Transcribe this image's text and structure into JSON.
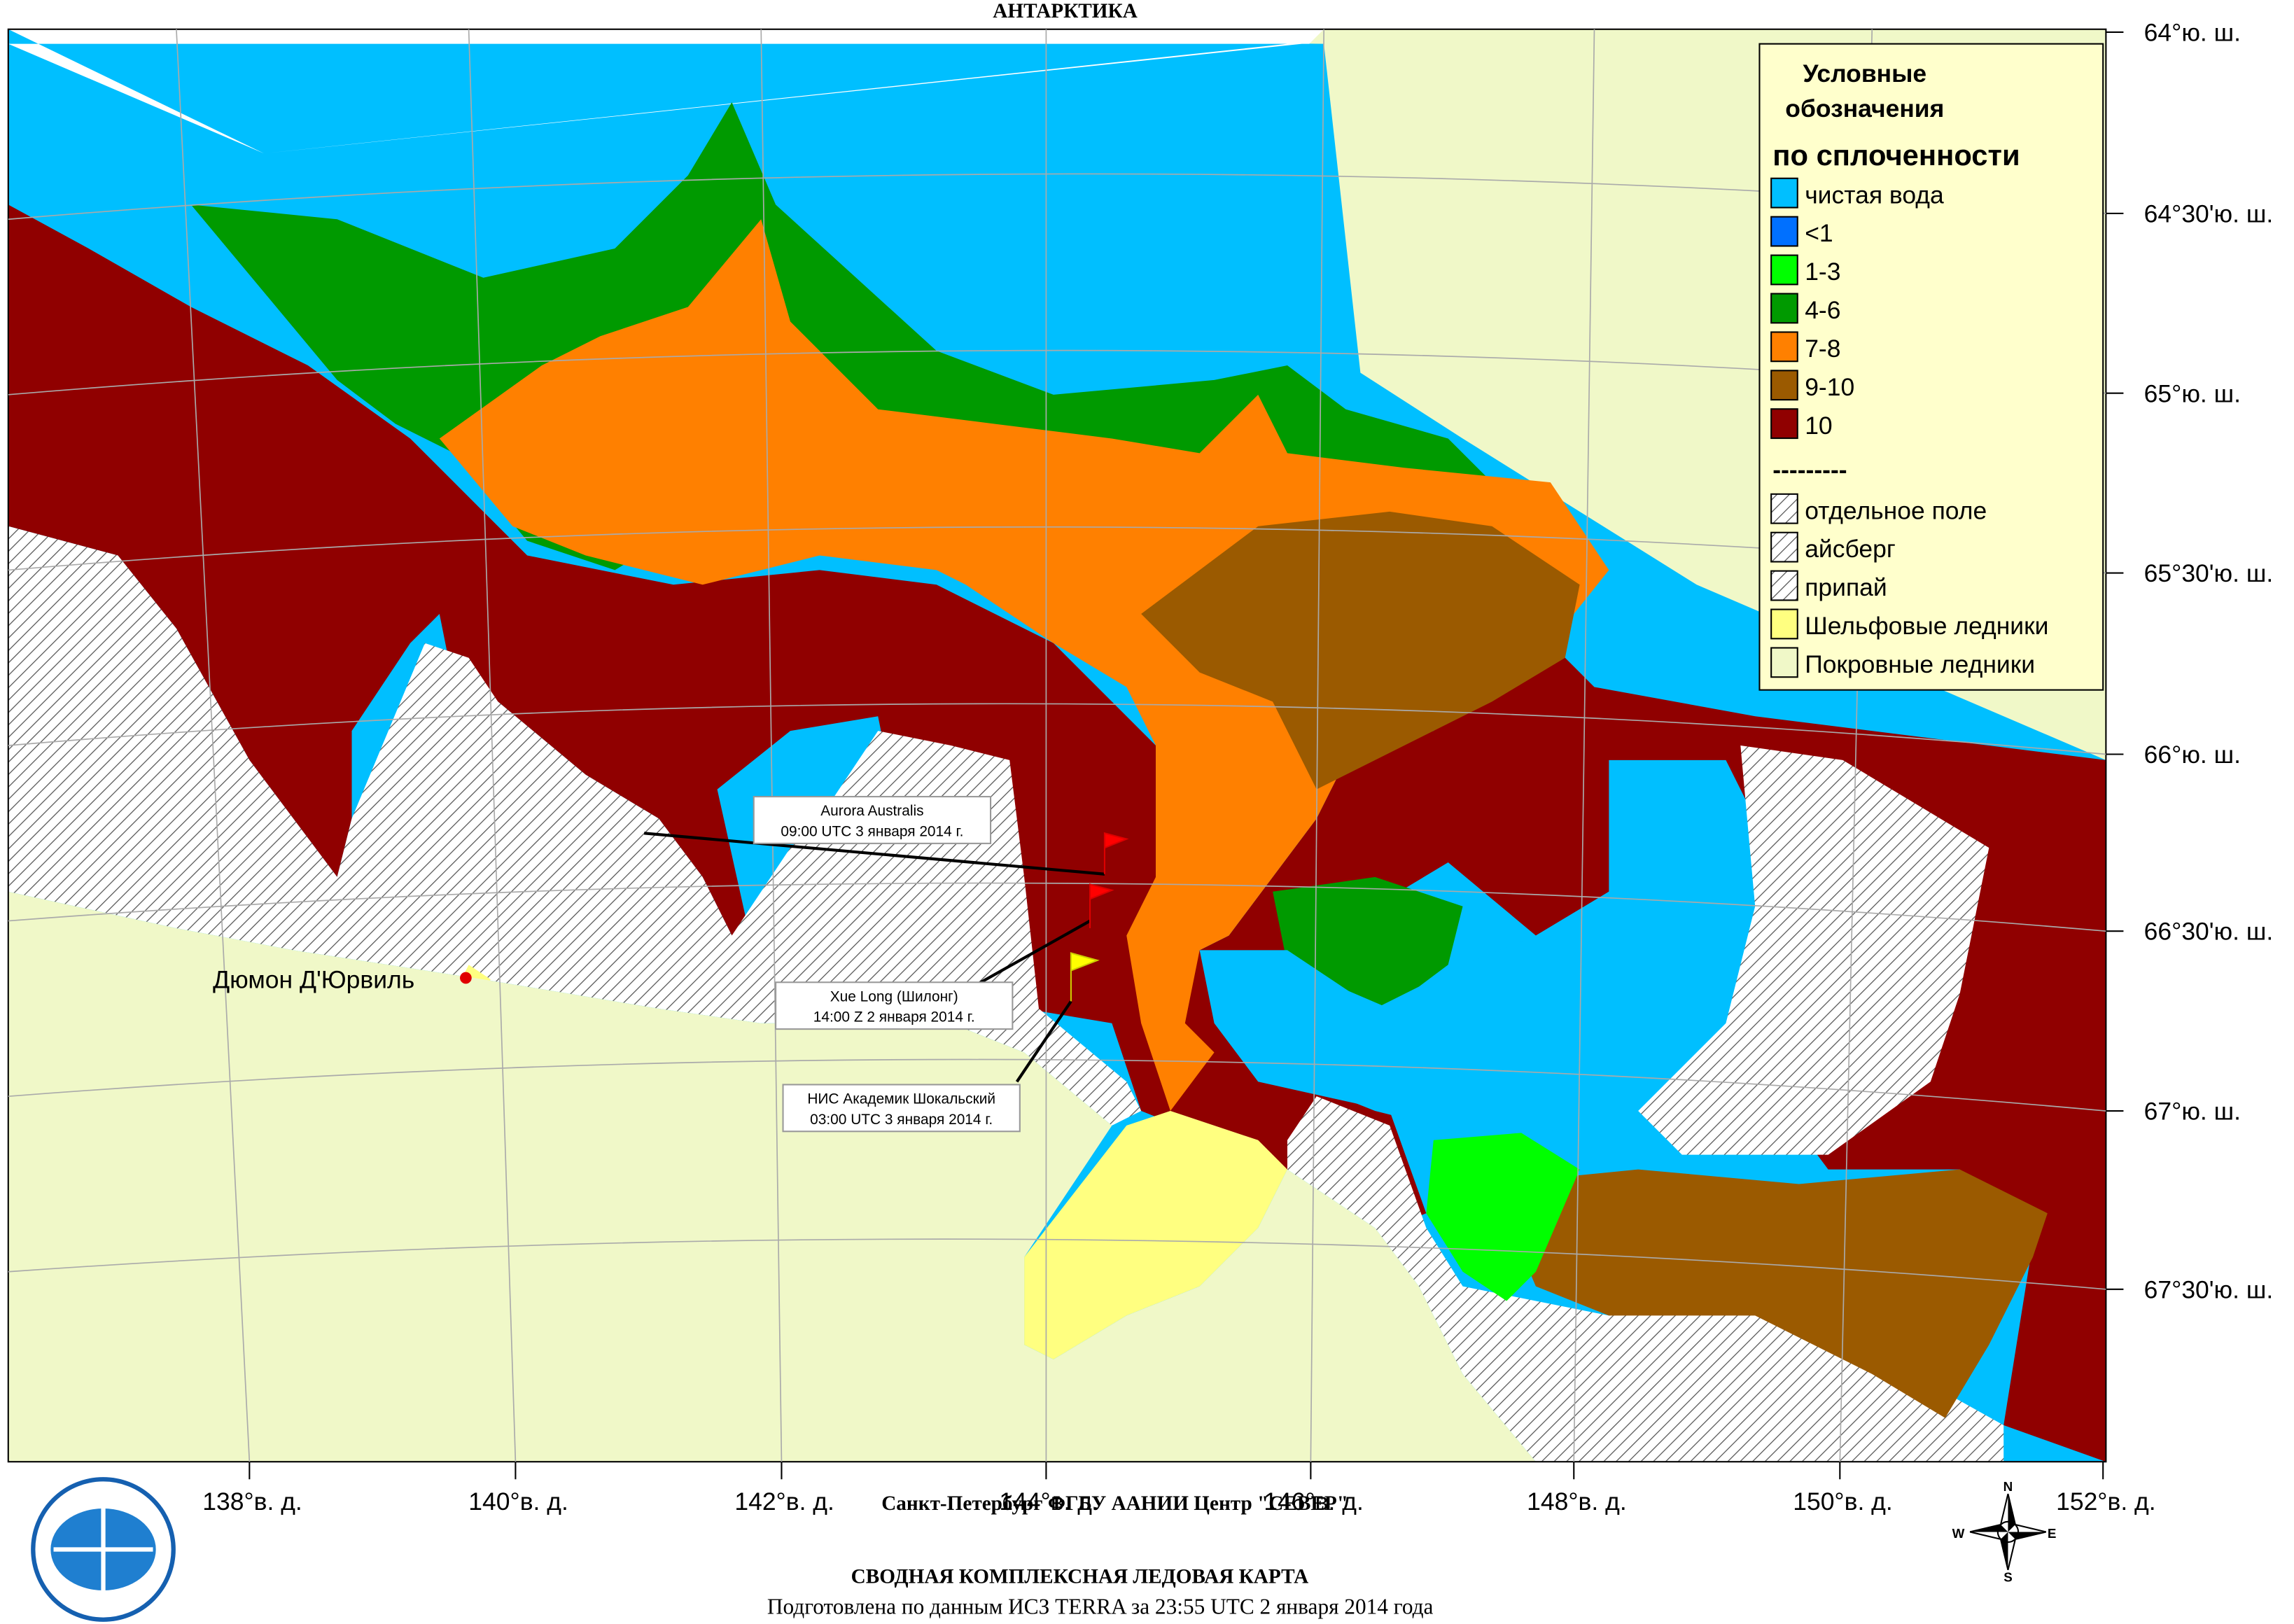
{
  "header": {
    "title": "АНТАРКТИКА"
  },
  "legend": {
    "title_line1": "Условные",
    "title_line2": "обозначения",
    "subtitle": "по сплоченности",
    "items": [
      {
        "label": "чистая вода",
        "color": "#00bfff"
      },
      {
        "label": "<1",
        "color": "#0070ff"
      },
      {
        "label": "1-3",
        "color": "#00ff00"
      },
      {
        "label": "4-6",
        "color": "#009a00"
      },
      {
        "label": "7-8",
        "color": "#ff8000"
      },
      {
        "label": "9-10",
        "color": "#9b5a00"
      },
      {
        "label": "10",
        "color": "#900000"
      }
    ],
    "separator": "---------",
    "pattern_items": [
      {
        "label": "отдельное поле",
        "color": "#ffffff"
      },
      {
        "label": "айсберг",
        "color": "#ffffff"
      },
      {
        "label": "припай",
        "color": "#ffffff"
      },
      {
        "label": "Шельфовые ледники",
        "color": "#ffff80"
      },
      {
        "label": "Покровные ледники",
        "color": "#f0f8c8"
      }
    ]
  },
  "lat_labels": [
    "64°ю. ш.",
    "64°30'ю. ш.",
    "65°ю. ш.",
    "65°30'ю. ш.",
    "66°ю. ш.",
    "66°30'ю. ш.",
    "67°ю. ш.",
    "67°30'ю. ш."
  ],
  "lon_labels": [
    "138°в. д.",
    "140°в. д.",
    "142°в. д.",
    "144°в. д.",
    "146°в. д.",
    "148°в. д.",
    "150°в. д.",
    "152°в. д."
  ],
  "places": [
    {
      "label": "Дюмон Д'Юрвиль"
    }
  ],
  "ships": [
    {
      "name": "Aurora Australis",
      "time": "09:00 UTC 3 января 2014 г."
    },
    {
      "name": "Xue Long (Шилонг)",
      "time": "14:00 Z  2 января 2014 г."
    },
    {
      "name": "НИС Академик Шокальский",
      "time": "03:00 UTC 3 января 2014 г."
    }
  ],
  "compass": {
    "n": "N",
    "e": "E",
    "s": "S",
    "w": "W"
  },
  "footer": {
    "line1": "Санкт-Петербург  ФГБУ  ААНИИ  Центр \"СЕВЕР\"",
    "line2": "СВОДНАЯ  КОМПЛЕКСНАЯ  ЛЕДОВАЯ  КАРТА",
    "line3": "Подготовлена по данным ИСЗ TERRA за 23:55 UTC 2 января 2014 года"
  }
}
